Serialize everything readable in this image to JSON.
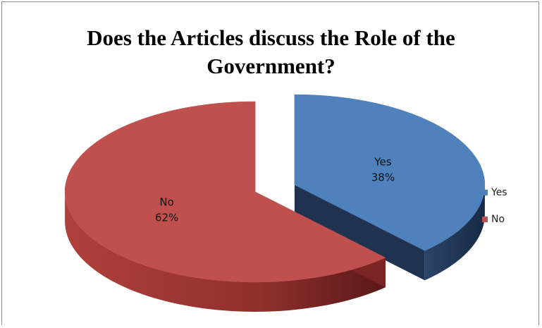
{
  "chart_data": {
    "type": "pie",
    "title_lines": [
      "Does the Articles discuss the Role of the",
      "Government?"
    ],
    "slices": [
      {
        "label": "Yes",
        "value": 38,
        "percent_label": "38%",
        "color": "#4f81bd",
        "side_color": "#1f3250"
      },
      {
        "label": "No",
        "value": 62,
        "percent_label": "62%",
        "color": "#c0504d",
        "side_color": "#7a2523"
      }
    ],
    "legend": [
      "Yes",
      "No"
    ],
    "legend_position": "right",
    "exploded": true,
    "style": "3d"
  }
}
